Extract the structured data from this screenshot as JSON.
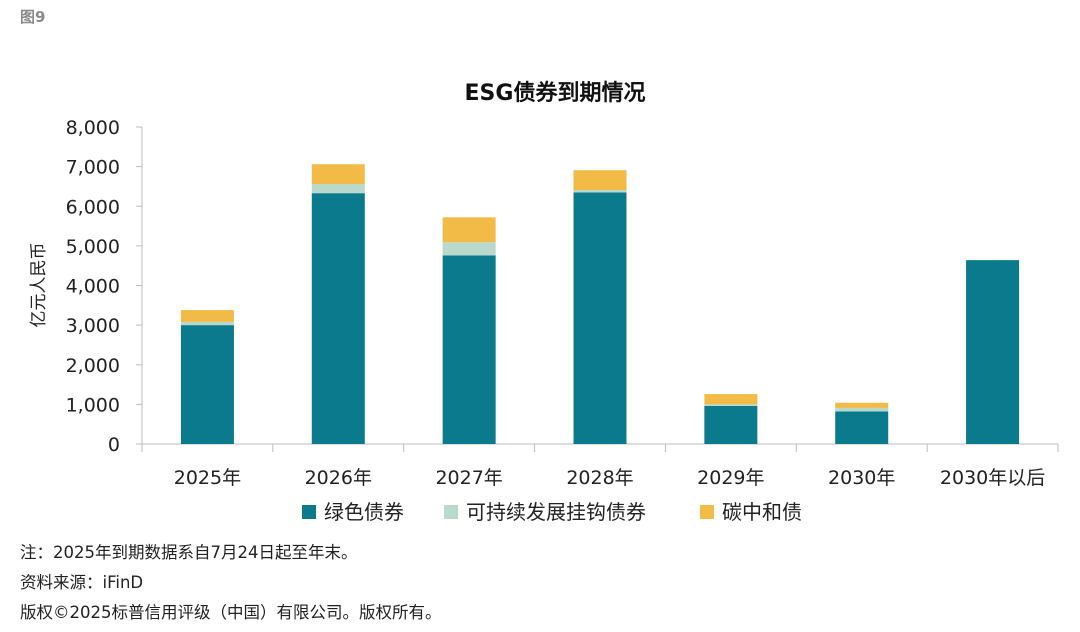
{
  "figure_label": "图9",
  "chart_data": {
    "type": "bar",
    "stacked": true,
    "title": "ESG债券到期情况",
    "ylabel": "亿元人民币",
    "xlabel": "",
    "ylim": [
      0,
      8000
    ],
    "yticks": [
      0,
      1000,
      2000,
      3000,
      4000,
      5000,
      6000,
      7000,
      8000
    ],
    "ytick_labels": [
      "0",
      "1,000",
      "2,000",
      "3,000",
      "4,000",
      "5,000",
      "6,000",
      "7,000",
      "8,000"
    ],
    "categories": [
      "2025年",
      "2026年",
      "2027年",
      "2028年",
      "2029年",
      "2030年",
      "2030年以后"
    ],
    "series": [
      {
        "name": "绿色债券",
        "color": "#0b7a8c",
        "values": [
          3000,
          6330,
          4760,
          6350,
          960,
          820,
          4640
        ]
      },
      {
        "name": "可持续发展挂钩债券",
        "color": "#b9d9cd",
        "values": [
          80,
          230,
          330,
          60,
          40,
          90,
          0
        ]
      },
      {
        "name": "碳中和债",
        "color": "#f2bb47",
        "values": [
          300,
          500,
          630,
          500,
          260,
          130,
          0
        ]
      }
    ],
    "grid": false,
    "legend_position": "bottom"
  },
  "notes": {
    "note": "注：2025年到期数据系自7月24日起至年末。",
    "source": "资料来源：iFinD",
    "copyright": "版权©2025标普信用评级（中国）有限公司。版权所有。"
  }
}
